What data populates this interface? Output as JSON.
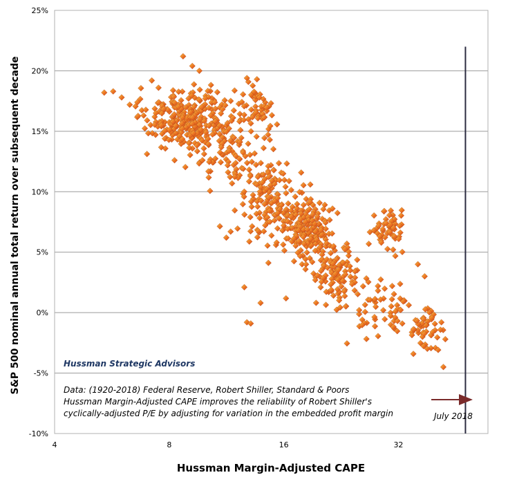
{
  "chart_data": {
    "type": "scatter",
    "title": "",
    "xlabel": "Hussman Margin-Adjusted CAPE",
    "ylabel": "S&P 500 nominal annual total return over subsequent decade",
    "x_scale": "log2",
    "xlim": [
      4,
      55
    ],
    "ylim": [
      -10,
      25
    ],
    "x_ticks": [
      "4",
      "8",
      "16",
      "32"
    ],
    "x_tick_values": [
      4,
      8,
      16,
      32
    ],
    "y_ticks": [
      "25%",
      "20%",
      "15%",
      "10%",
      "5%",
      "0%",
      "-5%",
      "-10%"
    ],
    "y_tick_values": [
      25,
      20,
      15,
      10,
      5,
      0,
      -5,
      -10
    ],
    "grid": "horizontal",
    "marker_color": "#e8661c",
    "marker_highlight": "#f2b33a",
    "clusters": [
      {
        "cx": 8.8,
        "cy": 16.0,
        "sx": 1.7,
        "sy": 2.2,
        "n": 260
      },
      {
        "cx": 11.0,
        "cy": 14.0,
        "sx": 1.8,
        "sy": 3.0,
        "n": 110
      },
      {
        "cx": 13.8,
        "cy": 17.0,
        "sx": 1.1,
        "sy": 1.6,
        "n": 50
      },
      {
        "cx": 14.5,
        "cy": 9.5,
        "sx": 2.2,
        "sy": 3.2,
        "n": 150
      },
      {
        "cx": 18.5,
        "cy": 7.0,
        "sx": 2.4,
        "sy": 2.2,
        "n": 190
      },
      {
        "cx": 22.0,
        "cy": 3.5,
        "sx": 2.5,
        "sy": 2.3,
        "n": 110
      },
      {
        "cx": 30.0,
        "cy": 7.0,
        "sx": 2.5,
        "sy": 1.4,
        "n": 60
      },
      {
        "cx": 29.0,
        "cy": 0.5,
        "sx": 4.0,
        "sy": 2.0,
        "n": 60
      },
      {
        "cx": 38.0,
        "cy": -1.5,
        "sx": 3.0,
        "sy": 1.5,
        "n": 50
      }
    ],
    "extra_points": [
      [
        5.4,
        18.2
      ],
      [
        5.7,
        18.3
      ],
      [
        6.0,
        17.8
      ],
      [
        6.3,
        17.2
      ],
      [
        6.6,
        17.4
      ],
      [
        7.0,
        15.9
      ],
      [
        7.2,
        19.2
      ],
      [
        7.5,
        18.6
      ],
      [
        8.7,
        21.2
      ],
      [
        9.2,
        20.4
      ],
      [
        9.6,
        20.0
      ],
      [
        12.8,
        -0.8
      ],
      [
        13.1,
        -0.9
      ],
      [
        13.9,
        0.8
      ],
      [
        12.6,
        2.1
      ],
      [
        11.3,
        6.2
      ],
      [
        11.6,
        6.7
      ],
      [
        12.8,
        19.4
      ],
      [
        13.6,
        19.3
      ],
      [
        42.0,
        -4.5
      ],
      [
        42.5,
        -2.2
      ],
      [
        41.5,
        -0.8
      ],
      [
        36.0,
        4.0
      ],
      [
        37.5,
        3.0
      ]
    ]
  },
  "annotations": {
    "brand": "Hussman Strategic Advisors",
    "note_line1": "Data: (1920-2018)  Federal Reserve, Robert Shiller,  Standard & Poors",
    "note_line2": "Hussman Margin-Adjusted CAPE improves the reliability of Robert Shiller's",
    "note_line3": "cyclically-adjusted P/E by adjusting for variation in the embedded profit margin",
    "marker_label": "July 2018",
    "marker_x": 48,
    "marker_y_top": 22
  }
}
